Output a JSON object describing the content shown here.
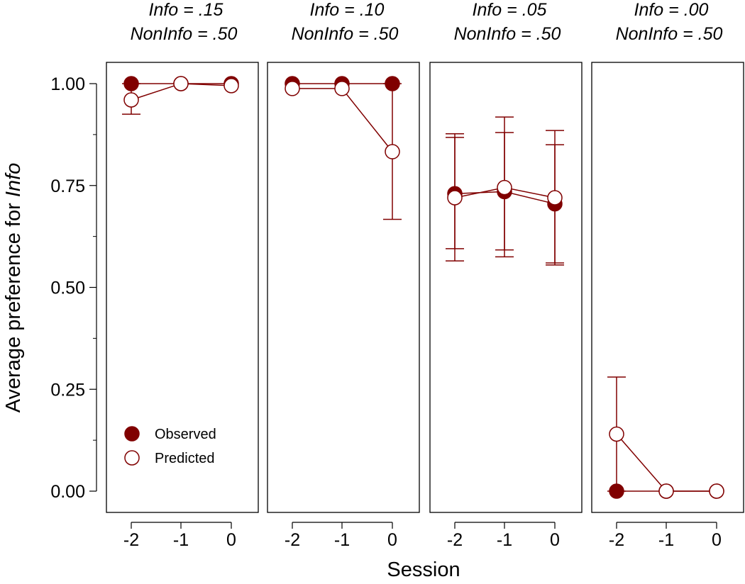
{
  "chart_data": {
    "type": "scatter",
    "ylabel_prefix": "Average preference for ",
    "ylabel_emphasis": "Info",
    "xlabel": "Session",
    "ylim": [
      0,
      1
    ],
    "y_ticks": [
      0,
      0.25,
      0.5,
      0.75,
      1.0
    ],
    "y_tick_labels": [
      "0.00",
      "0.25",
      "0.50",
      "0.75",
      "1.00"
    ],
    "x_ticks": [
      -2,
      -1,
      0
    ],
    "x_tick_labels": [
      "-2",
      "-1",
      "0"
    ],
    "colors": {
      "series": "#800000",
      "hollow_fill": "#ffffff"
    },
    "legend": {
      "position": "bottom-left of first panel",
      "entries": [
        {
          "label": "Observed",
          "style": "filled"
        },
        {
          "label": "Predicted",
          "style": "hollow"
        }
      ]
    },
    "panels": [
      {
        "title_line1": "Info = .15",
        "title_line2": "NonInfo = .50",
        "x": [
          -2,
          -1,
          0
        ],
        "observed": [
          1.0,
          1.0,
          1.0
        ],
        "predicted": [
          0.96,
          1.0,
          0.995
        ],
        "pred_error": [
          [
            0.925,
            1.0
          ],
          null,
          null
        ]
      },
      {
        "title_line1": "Info = .10",
        "title_line2": "NonInfo = .50",
        "x": [
          -2,
          -1,
          0
        ],
        "observed": [
          1.0,
          1.0,
          1.0
        ],
        "predicted": [
          0.988,
          0.988,
          0.833
        ],
        "pred_error": [
          null,
          null,
          [
            0.667,
            1.0
          ]
        ]
      },
      {
        "title_line1": "Info = .05",
        "title_line2": "NonInfo = .50",
        "x": [
          -2,
          -1,
          0
        ],
        "observed": [
          0.73,
          0.735,
          0.705
        ],
        "predicted": [
          0.72,
          0.745,
          0.72
        ],
        "obs_error": [
          [
            0.595,
            0.868
          ],
          [
            0.592,
            0.88
          ],
          [
            0.56,
            0.85
          ]
        ],
        "pred_error": [
          [
            0.565,
            0.877
          ],
          [
            0.575,
            0.918
          ],
          [
            0.555,
            0.885
          ]
        ]
      },
      {
        "title_line1": "Info = .00",
        "title_line2": "NonInfo = .50",
        "x": [
          -2,
          -1,
          0
        ],
        "observed": [
          0.0,
          0.0,
          0.0
        ],
        "predicted": [
          0.14,
          0.0,
          0.0
        ],
        "pred_error": [
          [
            0.0,
            0.28
          ],
          null,
          null
        ]
      }
    ]
  }
}
